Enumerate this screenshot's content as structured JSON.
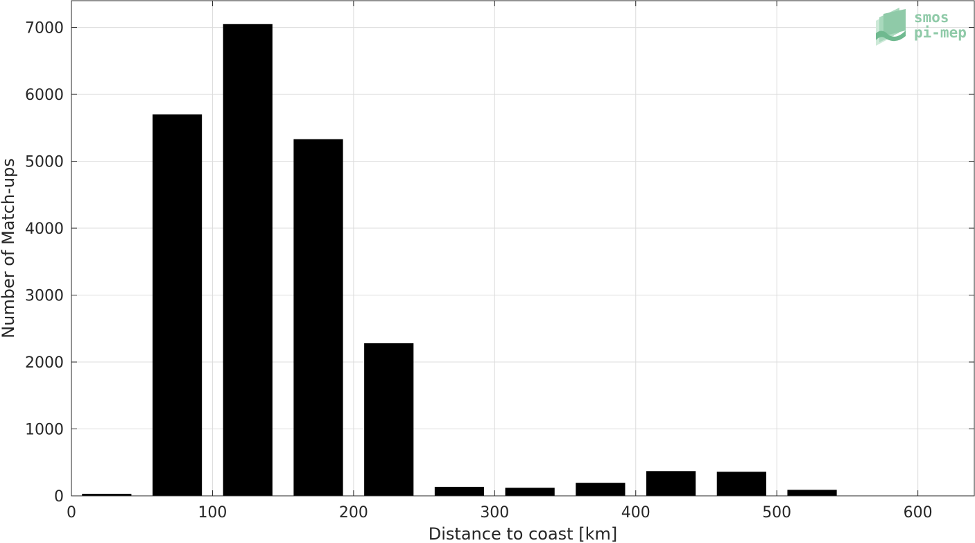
{
  "chart_data": {
    "type": "bar",
    "x": [
      25,
      75,
      125,
      175,
      225,
      275,
      325,
      375,
      425,
      475,
      525
    ],
    "values": [
      30,
      5700,
      7050,
      5330,
      2280,
      135,
      120,
      195,
      370,
      360,
      90
    ],
    "bar_width": 35,
    "xlabel": "Distance to coast [km]",
    "ylabel": "Number of Match-ups",
    "xlim": [
      0,
      640
    ],
    "ylim": [
      0,
      7400
    ],
    "xticks": [
      0,
      100,
      200,
      300,
      400,
      500,
      600
    ],
    "yticks": [
      0,
      1000,
      2000,
      3000,
      4000,
      5000,
      6000,
      7000
    ],
    "grid": true,
    "bar_color": "#000000"
  },
  "logo": {
    "line1": "smos",
    "line2": "pi-mep",
    "color": "#8fcaa8"
  }
}
